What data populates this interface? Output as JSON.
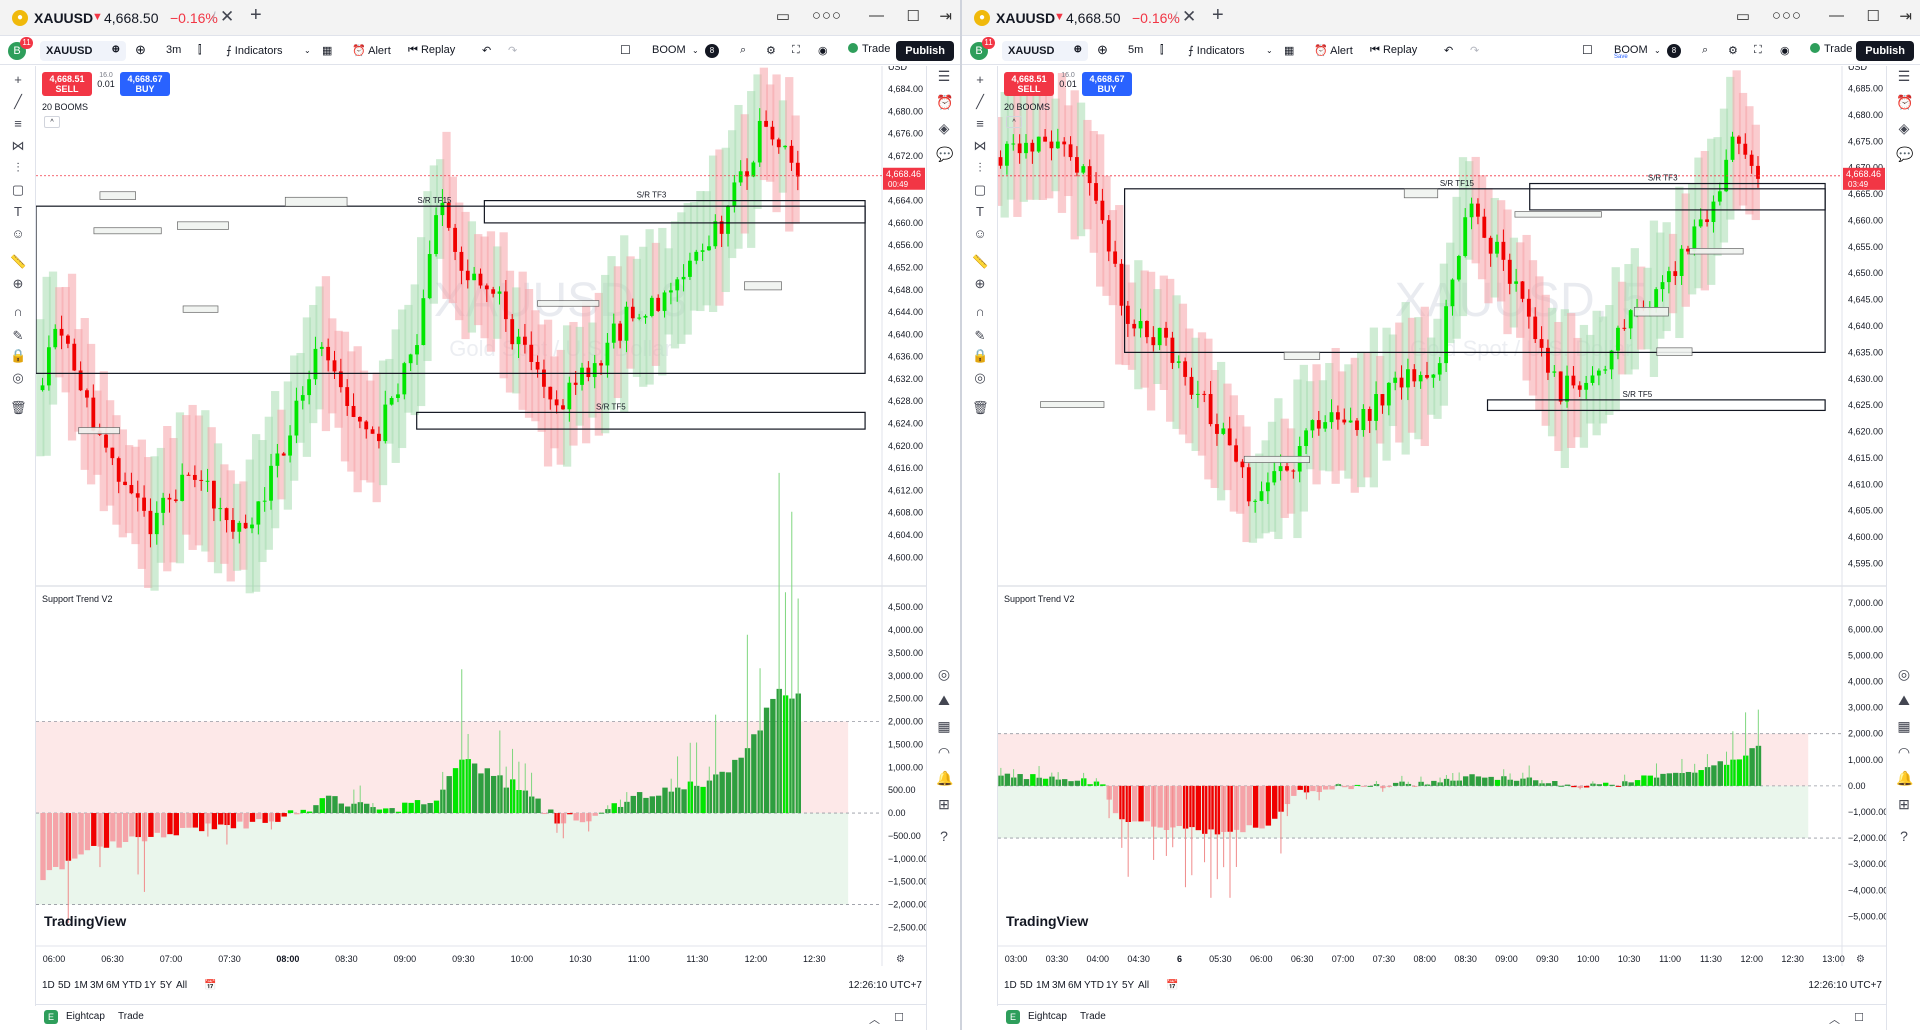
{
  "windows": [
    {
      "id": "left",
      "title": {
        "symbol": "XAUUSD",
        "price": "4,668.50",
        "change": "−0.16%"
      },
      "toolbar": {
        "symbol": "XAUUSD",
        "interval": "3m",
        "indicators": "Indicators",
        "alert": "Alert",
        "replay": "Replay",
        "layout": "BOOM",
        "layout_sub": "",
        "trade": "Trade",
        "publish": "Publish",
        "avatar": "B",
        "notifications": "11"
      },
      "order": {
        "sell_price": "4,668.51",
        "sell": "SELL",
        "buy_price": "4,668.67",
        "buy": "BUY",
        "spread": "16.0",
        "qty": "0.01"
      },
      "legend": "20 BOOMS",
      "watermark": "XAUUSD, 3",
      "watermark_sub": "Gold Spot / U.S. Dollar",
      "currency": "USD",
      "price_ticks": [
        "4,684.00",
        "4,680.00",
        "4,676.00",
        "4,672.00",
        "4,668.00",
        "4,664.00",
        "4,660.00",
        "4,656.00",
        "4,652.00",
        "4,648.00",
        "4,644.00",
        "4,640.00",
        "4,636.00",
        "4,632.00",
        "4,628.00",
        "4,624.00",
        "4,620.00",
        "4,616.00",
        "4,612.00",
        "4,608.00",
        "4,604.00",
        "4,600.00"
      ],
      "last_price": "4,668.46",
      "countdown": "00:49",
      "sr_labels": [
        "S/R TF15",
        "S/R TF3",
        "S/R TF5"
      ],
      "indicator_title": "Support Trend V2",
      "ind_ticks": [
        "4,500.00",
        "4,000.00",
        "3,500.00",
        "3,000.00",
        "2,500.00",
        "2,000.00",
        "1,500.00",
        "1,000.00",
        "500.00",
        "0.00",
        "−500.00",
        "−1,000.00",
        "−1,500.00",
        "−2,000.00",
        "−2,500.00"
      ],
      "time_ticks": [
        "06:00",
        "06:30",
        "07:00",
        "07:30",
        "08:00",
        "08:30",
        "09:00",
        "09:30",
        "10:00",
        "10:30",
        "11:00",
        "11:30",
        "12:00",
        "12:30"
      ],
      "bold_time": "08:00",
      "logo": "TradingView",
      "ranges": [
        "1D",
        "5D",
        "1M",
        "3M",
        "6M",
        "YTD",
        "1Y",
        "5Y",
        "All"
      ],
      "clock": "12:26:10 UTC+7",
      "broker": "Eightcap",
      "broker_trade": "Trade"
    },
    {
      "id": "right",
      "title": {
        "symbol": "XAUUSD",
        "price": "4,668.50",
        "change": "−0.16%"
      },
      "toolbar": {
        "symbol": "XAUUSD",
        "interval": "5m",
        "indicators": "Indicators",
        "alert": "Alert",
        "replay": "Replay",
        "layout": "BOOM",
        "layout_sub": "Save",
        "trade": "Trade",
        "publish": "Publish",
        "avatar": "B",
        "notifications": "11"
      },
      "order": {
        "sell_price": "4,668.51",
        "sell": "SELL",
        "buy_price": "4,668.67",
        "buy": "BUY",
        "spread": "16.0",
        "qty": "0.01"
      },
      "legend": "20 BOOMS",
      "watermark": "XAUUSD, 5",
      "watermark_sub": "Gold Spot / U.S. Dollar",
      "currency": "USD",
      "price_ticks": [
        "4,685.00",
        "4,680.00",
        "4,675.00",
        "4,670.00",
        "4,665.00",
        "4,660.00",
        "4,655.00",
        "4,650.00",
        "4,645.00",
        "4,640.00",
        "4,635.00",
        "4,630.00",
        "4,625.00",
        "4,620.00",
        "4,615.00",
        "4,610.00",
        "4,605.00",
        "4,600.00",
        "4,595.00"
      ],
      "last_price": "4,668.46",
      "countdown": "03:49",
      "sr_labels": [
        "S/R TF15",
        "S/R TF3",
        "S/R TF5"
      ],
      "indicator_title": "Support Trend V2",
      "ind_ticks": [
        "7,000.00",
        "6,000.00",
        "5,000.00",
        "4,000.00",
        "3,000.00",
        "2,000.00",
        "1,000.00",
        "0.00",
        "−1,000.00",
        "−2,000.00",
        "−3,000.00",
        "−4,000.00",
        "−5,000.00"
      ],
      "time_ticks": [
        "03:00",
        "03:30",
        "04:00",
        "04:30",
        "6",
        "05:30",
        "06:00",
        "06:30",
        "07:00",
        "07:30",
        "08:00",
        "08:30",
        "09:00",
        "09:30",
        "10:00",
        "10:30",
        "11:00",
        "11:30",
        "12:00",
        "12:30",
        "13:00"
      ],
      "bold_time": "6",
      "logo": "TradingView",
      "ranges": [
        "1D",
        "5D",
        "1M",
        "3M",
        "6M",
        "YTD",
        "1Y",
        "5Y",
        "All"
      ],
      "clock": "12:26:10 UTC+7",
      "broker": "Eightcap",
      "broker_trade": "Trade"
    }
  ],
  "colors": {
    "bull": "#00e600",
    "bear": "#f00000",
    "bull_band": "#a8dcb0",
    "bear_band": "#f5a3a8",
    "accent": "#2962ff",
    "last_price": "#f23645"
  },
  "icons": {
    "left_tools": [
      "crosshair-icon",
      "trend-line-icon",
      "fib-icon",
      "pattern-icon",
      "ruler-lines-icon",
      "rectangle-icon",
      "text-icon",
      "emoji-icon",
      "measure-icon",
      "zoom-icon",
      "magnet-icon",
      "lock-draw-icon",
      "lock-icon",
      "eye-icon",
      "trash-icon"
    ],
    "right_tools": [
      "watchlist-icon",
      "alarm-icon",
      "layers-icon",
      "chat-icon",
      "target-icon",
      "pine-icon",
      "calendar-icon",
      "broadcast-icon",
      "bell-icon",
      "apps-icon",
      "help-icon"
    ]
  }
}
